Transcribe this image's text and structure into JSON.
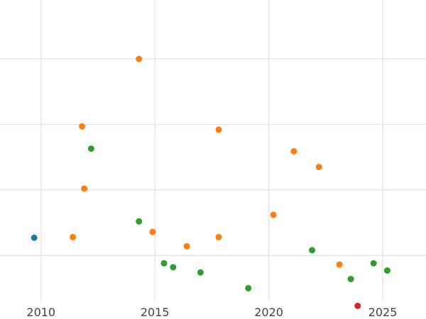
{
  "chart_data": {
    "type": "scatter",
    "title": "",
    "xlabel": "",
    "ylabel": "",
    "xlim": [
      2008.2,
      2026.9
    ],
    "ylim": [
      0.3,
      4.9
    ],
    "x_ticks": [
      2010,
      2015,
      2020,
      2025
    ],
    "y_gridlines": [
      1,
      2,
      3,
      4
    ],
    "grid": true,
    "legend": "none",
    "series": [
      {
        "color": "#1f77b4",
        "points": [
          [
            2009.7,
            1.27
          ]
        ]
      },
      {
        "color": "#ff7f0e",
        "points": [
          [
            2011.4,
            1.28
          ],
          [
            2011.8,
            2.97
          ],
          [
            2011.9,
            2.02
          ],
          [
            2014.3,
            4.0
          ],
          [
            2014.9,
            1.36
          ],
          [
            2016.4,
            1.14
          ],
          [
            2017.8,
            2.92
          ],
          [
            2017.8,
            1.28
          ],
          [
            2020.2,
            1.62
          ],
          [
            2021.1,
            2.59
          ],
          [
            2022.2,
            2.35
          ],
          [
            2023.1,
            0.86
          ]
        ]
      },
      {
        "color": "#2ca02c",
        "points": [
          [
            2012.2,
            2.63
          ],
          [
            2014.3,
            1.52
          ],
          [
            2015.4,
            0.88
          ],
          [
            2015.8,
            0.82
          ],
          [
            2017.0,
            0.74
          ],
          [
            2019.1,
            0.5
          ],
          [
            2021.9,
            1.08
          ],
          [
            2023.6,
            0.64
          ],
          [
            2024.6,
            0.88
          ],
          [
            2025.2,
            0.77
          ]
        ]
      },
      {
        "color": "#d62728",
        "points": [
          [
            2023.9,
            0.23
          ]
        ]
      }
    ]
  }
}
